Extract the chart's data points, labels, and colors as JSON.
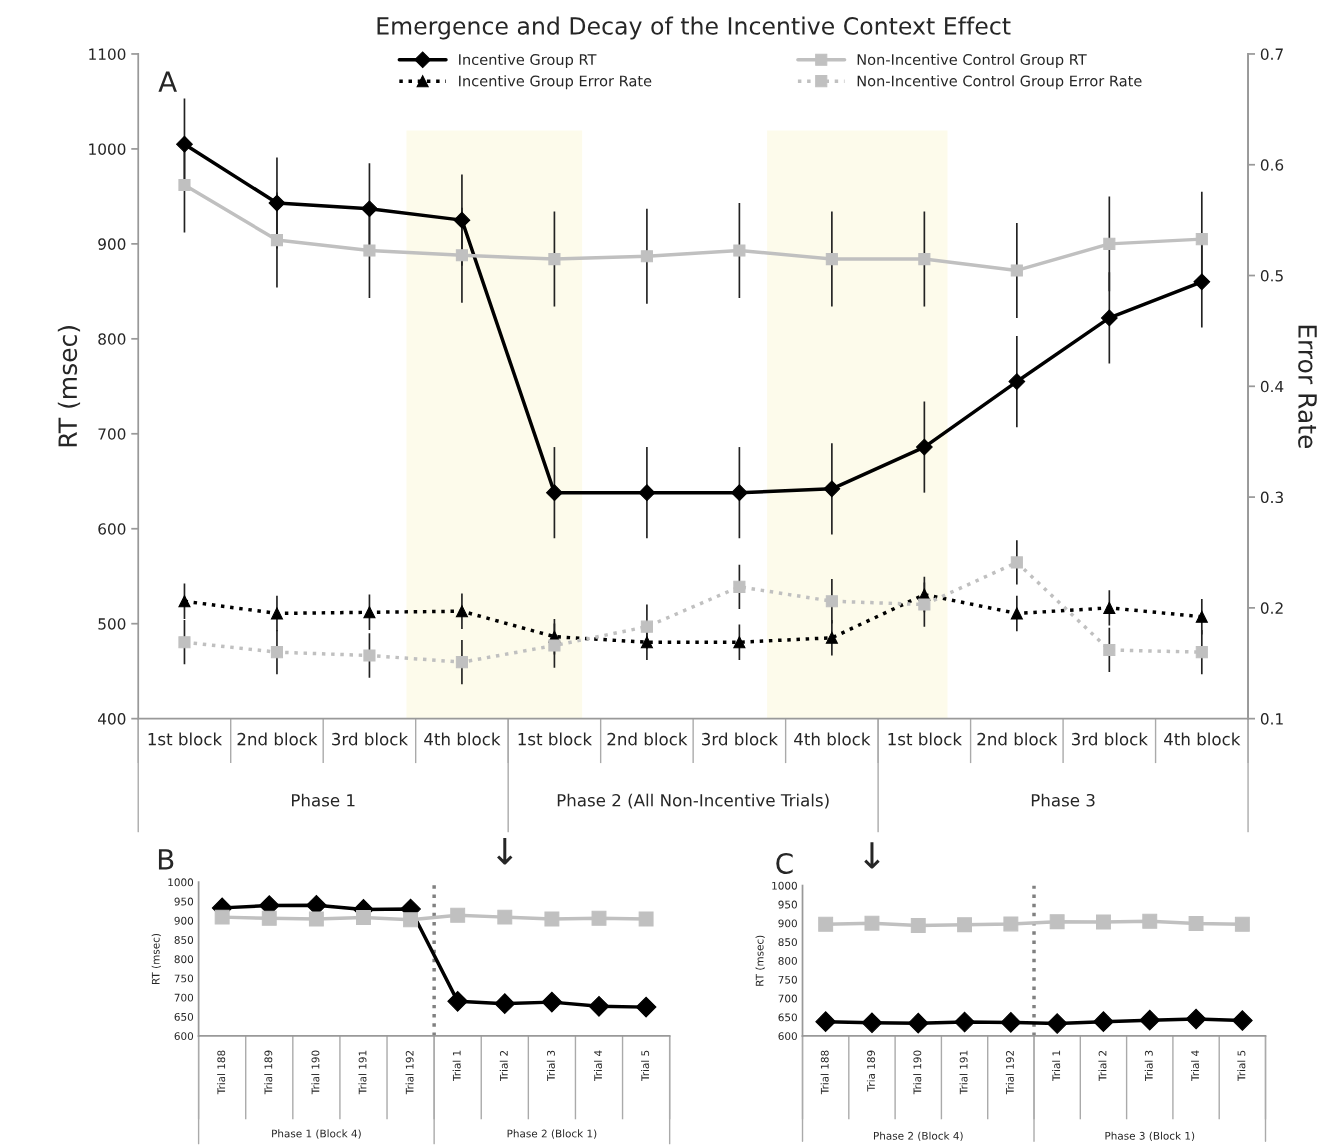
{
  "chart_data": [
    {
      "type": "line",
      "title": "Emergence and Decay of the Incentive Context Effect",
      "ylabel": "RT (msec)",
      "y2label": "Error Rate",
      "categories": [
        "1st block",
        "2nd block",
        "3rd block",
        "4th block",
        "1st block",
        "2nd block",
        "3rd block",
        "4th block",
        "1st block",
        "2nd block",
        "3rd block",
        "4th block"
      ],
      "series": [
        {
          "name": "Incentive Group RT",
          "color": "#000000",
          "marker": "diamond",
          "line_style": "solid",
          "values": [
            1005,
            943,
            937,
            925,
            638,
            638,
            638,
            642,
            686,
            755,
            822,
            860
          ],
          "errors": [
            48,
            48,
            48,
            48,
            48,
            48,
            48,
            48,
            48,
            48,
            48,
            48
          ]
        },
        {
          "name": "Incentive Group Error Rate",
          "color": "#000000",
          "marker": "triangle",
          "line_style": "dotted",
          "axis": "y2",
          "values": [
            0.206,
            0.195,
            0.196,
            0.197,
            0.174,
            0.169,
            0.169,
            0.173,
            0.212,
            0.195,
            0.2,
            0.192
          ],
          "errors": [
            0.016,
            0.016,
            0.016,
            0.016,
            0.016,
            0.016,
            0.016,
            0.016,
            0.016,
            0.016,
            0.016,
            0.016
          ]
        },
        {
          "name": "Non-Incentive Control Group RT",
          "color": "#c0c0c0",
          "marker": "square",
          "line_style": "solid",
          "values": [
            962,
            904,
            893,
            888,
            884,
            887,
            893,
            884,
            884,
            872,
            900,
            905
          ],
          "errors": [
            50,
            50,
            50,
            50,
            50,
            50,
            50,
            50,
            50,
            50,
            50,
            50
          ]
        },
        {
          "name": "Non-Incentive Control Group Error Rate",
          "color": "#c0c0c0",
          "marker": "square",
          "line_style": "dotted",
          "axis": "y2",
          "values": [
            0.169,
            0.16,
            0.157,
            0.151,
            0.166,
            0.183,
            0.219,
            0.206,
            0.203,
            0.241,
            0.162,
            0.16
          ],
          "errors": [
            0.02,
            0.02,
            0.02,
            0.02,
            0.02,
            0.02,
            0.02,
            0.02,
            0.02,
            0.02,
            0.02,
            0.02
          ]
        }
      ],
      "ylim": [
        400,
        1100
      ],
      "yticks": [
        400,
        500,
        600,
        700,
        800,
        900,
        1000,
        1100
      ],
      "y2lim": [
        0.1,
        0.7
      ],
      "y2ticks": [
        0.1,
        0.2,
        0.3,
        0.4,
        0.5,
        0.6,
        0.7
      ],
      "legend": "top",
      "annotations": [
        "A",
        "Phase 1",
        "Phase 2 (All Non-Incentive Trials)",
        "Phase 3"
      ]
    },
    {
      "type": "line",
      "ylabel": "RT (msec)",
      "categories": [
        "Trial 188",
        "Trial 189",
        "Trial 190",
        "Trial 191",
        "Trial 192",
        "Trial 1",
        "Trial 2",
        "Trial 3",
        "Trial 4",
        "Trial 5"
      ],
      "series": [
        {
          "color": "#000000",
          "marker": "diamond",
          "line_style": "solid",
          "values": [
            933,
            939,
            940,
            929,
            930,
            690,
            684,
            688,
            677,
            675
          ]
        },
        {
          "color": "#c0c0c0",
          "marker": "square",
          "line_style": "solid",
          "values": [
            909,
            906,
            904,
            908,
            902,
            914,
            909,
            904,
            906,
            904
          ]
        }
      ],
      "ylim": [
        600,
        1000
      ],
      "yticks": [
        600,
        650,
        700,
        750,
        800,
        850,
        900,
        950,
        1000
      ],
      "annotations": [
        "B",
        "↓",
        "Phase 1 (Block 4)",
        "Phase 2 (Block 1)"
      ]
    },
    {
      "type": "line",
      "ylabel": "RT (msec)",
      "categories": [
        "Trial 188",
        "Tria 189",
        "Trial 190",
        "Trial 191",
        "Trial 192",
        "Trial 1",
        "Trial 2",
        "Trial 3",
        "Trial 4",
        "Trial 5"
      ],
      "series": [
        {
          "color": "#000000",
          "marker": "diamond",
          "line_style": "solid",
          "values": [
            638,
            635,
            634,
            637,
            636,
            633,
            638,
            642,
            645,
            641
          ]
        },
        {
          "color": "#c0c0c0",
          "marker": "square",
          "line_style": "solid",
          "values": [
            897,
            900,
            894,
            896,
            898,
            904,
            903,
            905,
            899,
            897
          ]
        }
      ],
      "ylim": [
        600,
        1000
      ],
      "yticks": [
        600,
        650,
        700,
        750,
        800,
        850,
        900,
        950,
        1000
      ],
      "annotations": [
        "C",
        "↓",
        "Phase 2 (Block 4)",
        "Phase 3 (Block 1)"
      ]
    }
  ]
}
